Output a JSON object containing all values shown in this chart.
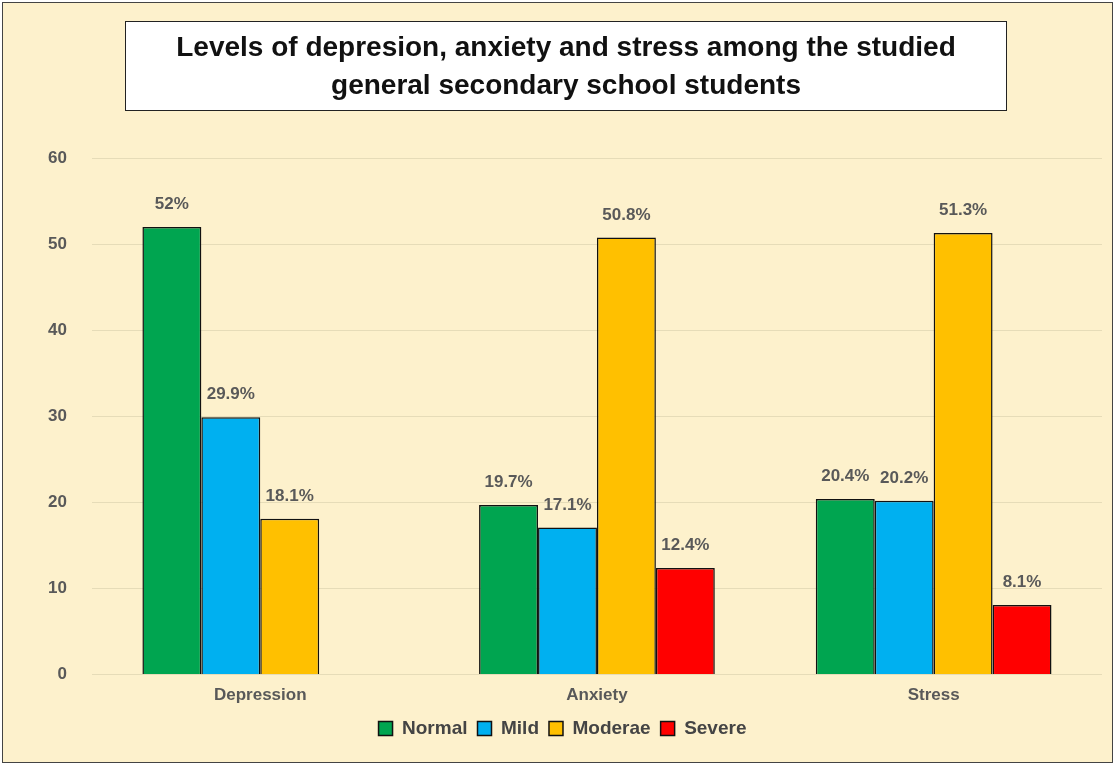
{
  "chart_data": {
    "type": "bar",
    "title": "Levels of depresion, anxiety and stress among the studied general secondary school students",
    "categories": [
      "Depression",
      "Anxiety",
      "Stress"
    ],
    "series": [
      {
        "name": "Normal",
        "color": "#00a550",
        "values": [
          52,
          19.7,
          20.4
        ],
        "value_labels": [
          "52%",
          "19.7%",
          "20.4%"
        ]
      },
      {
        "name": "Mild",
        "color": "#00b0f0",
        "values": [
          29.9,
          17.1,
          20.2
        ],
        "value_labels": [
          "29.9%",
          "17.1%",
          "20.2%"
        ]
      },
      {
        "name": "Moderae",
        "color": "#ffc000",
        "values": [
          18.1,
          50.8,
          51.3
        ],
        "value_labels": [
          "18.1%",
          "50.8%",
          "51.3%"
        ]
      },
      {
        "name": "Severe",
        "color": "#ff0000",
        "values": [
          null,
          12.4,
          8.1
        ],
        "value_labels": [
          null,
          "12.4%",
          "8.1%"
        ]
      }
    ],
    "ylim": [
      0,
      60
    ],
    "yticks": [
      0,
      10,
      20,
      30,
      40,
      50,
      60
    ],
    "grid": "y",
    "legend": "bottom"
  }
}
